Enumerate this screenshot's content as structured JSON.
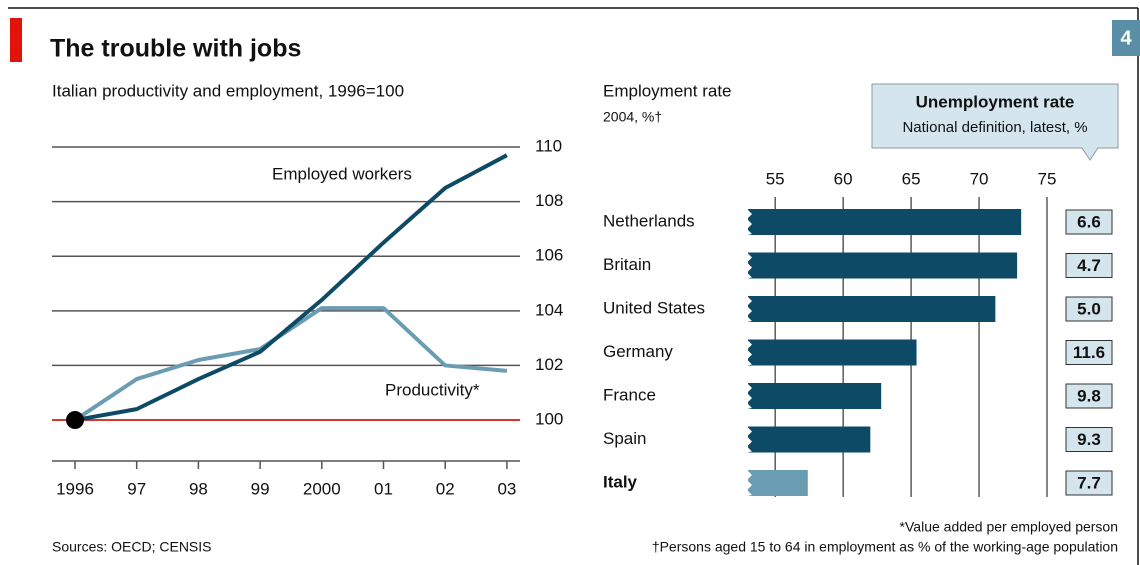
{
  "title": "The trouble with jobs",
  "page_number": "4",
  "sources": "Sources: OECD; CENSIS",
  "footnotes": [
    "*Value added per employed person",
    "†Persons aged 15 to 64 in employment as % of the working-age population"
  ],
  "chart_data": [
    {
      "type": "line",
      "subtitle": "Italian productivity and employment, 1996=100",
      "categories": [
        "1996",
        "97",
        "98",
        "99",
        "2000",
        "01",
        "02",
        "03"
      ],
      "series": [
        {
          "name": "Employed workers",
          "color": "#0d4a66",
          "values": [
            100,
            100.4,
            101.5,
            102.5,
            104.4,
            106.5,
            108.5,
            109.7
          ]
        },
        {
          "name": "Productivity*",
          "color": "#6a9db3",
          "values": [
            100,
            101.5,
            102.2,
            102.6,
            104.1,
            104.1,
            102.0,
            101.8
          ]
        }
      ],
      "ylim": [
        98.5,
        110
      ],
      "yticks": [
        100,
        102,
        104,
        106,
        108,
        110
      ],
      "reference_line": 100,
      "reference_color": "#e3120b",
      "grid": true
    },
    {
      "type": "hbar",
      "title": "Employment rate",
      "subtitle": "2004, %†",
      "categories": [
        "Netherlands",
        "Britain",
        "United States",
        "Germany",
        "France",
        "Spain",
        "Italy"
      ],
      "values": [
        73.1,
        72.8,
        71.2,
        65.4,
        62.8,
        62.0,
        57.4
      ],
      "color": "#0d4a66",
      "colors": [
        "#0d4a66",
        "#0d4a66",
        "#0d4a66",
        "#0d4a66",
        "#0d4a66",
        "#0d4a66",
        "#6a9db3"
      ],
      "xlim": [
        53,
        75
      ],
      "xticks": [
        55,
        60,
        65,
        70,
        75
      ],
      "grid": true
    }
  ],
  "unemployment": {
    "title": "Unemployment rate",
    "subtitle": "National definition, latest, %",
    "values": [
      6.6,
      4.7,
      5.0,
      11.6,
      9.8,
      9.3,
      7.7
    ],
    "value_labels": [
      "6.6",
      "4.7",
      "5.0",
      "11.6",
      "9.8",
      "9.3",
      "7.7"
    ]
  }
}
